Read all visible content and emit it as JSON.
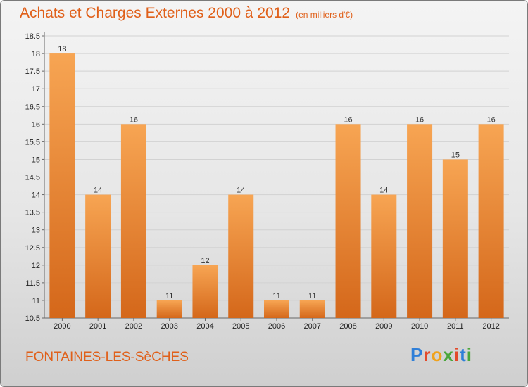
{
  "title": "Achats et Charges Externes 2000 à 2012",
  "unit_label": "(en milliers d'€)",
  "place": "FONTAINES-LES-SèCHES",
  "brand": "Proxiti",
  "colors": {
    "bar": "#f08a2c",
    "title": "#e0601a"
  },
  "chart_data": {
    "type": "bar",
    "title": "Achats et Charges Externes 2000 à 2012",
    "categories": [
      "2000",
      "2001",
      "2002",
      "2003",
      "2004",
      "2005",
      "2006",
      "2007",
      "2008",
      "2009",
      "2010",
      "2011",
      "2012"
    ],
    "values": [
      18,
      14,
      16,
      11,
      12,
      14,
      11,
      11,
      16,
      14,
      16,
      15,
      16
    ],
    "ylim": [
      10.5,
      18.5
    ],
    "yticks": [
      "10.5",
      "11",
      "11.5",
      "12",
      "12.5",
      "13",
      "13.5",
      "14",
      "14.5",
      "15",
      "15.5",
      "16",
      "16.5",
      "17",
      "17.5",
      "18",
      "18.5"
    ],
    "grid": true,
    "xlabel": "",
    "ylabel": ""
  }
}
